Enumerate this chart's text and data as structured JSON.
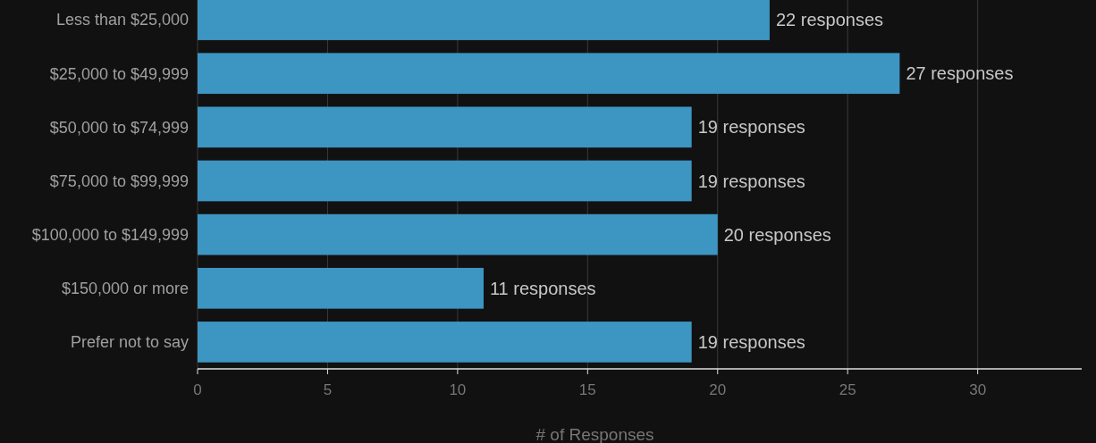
{
  "chart_data": {
    "type": "bar",
    "orientation": "horizontal",
    "xlabel": "# of Responses",
    "categories": [
      "Less than $25,000",
      "$25,000 to $49,999",
      "$50,000 to $74,999",
      "$75,000 to $99,999",
      "$100,000 to $149,999",
      "$150,000 or more",
      "Prefer not to say"
    ],
    "values": [
      22,
      27,
      19,
      19,
      20,
      11,
      19
    ],
    "value_labels": [
      "22 responses",
      "27 responses",
      "19 responses",
      "19 responses",
      "20 responses",
      "11 responses",
      "19 responses"
    ],
    "color": "#3d95c2",
    "xlim": [
      0,
      34
    ],
    "xticks": [
      0,
      5,
      10,
      15,
      20,
      25,
      30
    ],
    "grid": "x"
  }
}
